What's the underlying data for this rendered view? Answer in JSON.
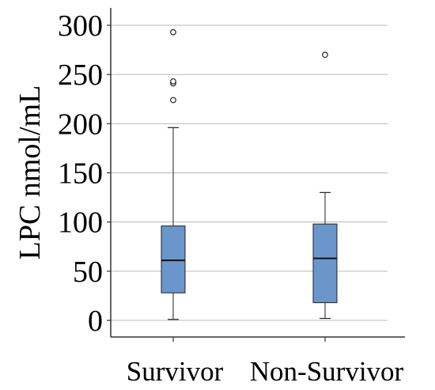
{
  "chart_data": {
    "type": "box",
    "ylabel": "LPC nmol/mL",
    "xlabel": "",
    "title": "",
    "ylim": [
      -15,
      315
    ],
    "yticks": [
      0,
      50,
      100,
      150,
      200,
      250,
      300
    ],
    "grid": true,
    "categories": [
      "Survivor",
      "Non-Survivor"
    ],
    "series": [
      {
        "category": "Survivor",
        "whisker_low": 1,
        "q1": 28,
        "median": 61,
        "q3": 96,
        "whisker_high": 196,
        "outliers": [
          224,
          241,
          243,
          293
        ]
      },
      {
        "category": "Non-Survivor",
        "whisker_low": 2,
        "q1": 18,
        "median": 63,
        "q3": 98,
        "whisker_high": 130,
        "outliers": [
          270
        ]
      }
    ],
    "box_color": "#6a96cc"
  }
}
